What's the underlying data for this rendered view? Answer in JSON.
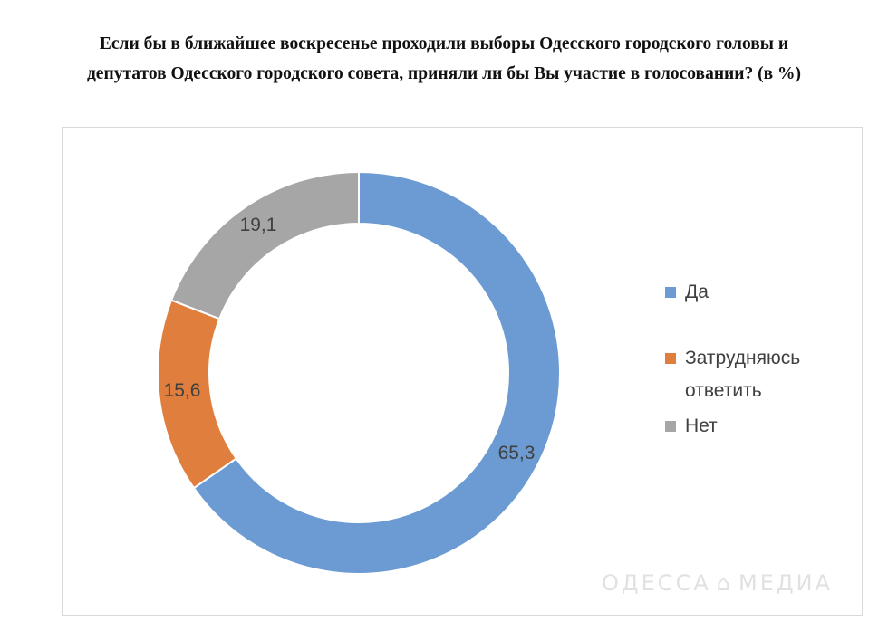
{
  "title": {
    "line1": "Если бы в ближайшее воскресенье проходили выборы Одесского городского головы и",
    "line2": "депутатов Одесского городского совета, приняли ли бы Вы участие в голосовании? (в %)"
  },
  "chart_data": {
    "type": "pie",
    "subtype": "donut",
    "title": "Если бы в ближайшее воскресенье проходили выборы Одесского городского головы и депутатов Одесского городского совета, приняли ли бы Вы участие в голосовании? (в %)",
    "categories": [
      "Да",
      "Затрудняюсь ответить",
      "Нет"
    ],
    "values": [
      65.3,
      15.6,
      19.1
    ],
    "value_labels": [
      "65,3",
      "15,6",
      "19,1"
    ],
    "colors": [
      "#6b9bd2",
      "#e07f3d",
      "#a6a6a6"
    ],
    "legend_position": "right"
  },
  "legend": {
    "items": [
      {
        "label": "Да",
        "color": "#6b9bd2"
      },
      {
        "label": "Затрудняюсь",
        "label2": "ответить",
        "color": "#e07f3d"
      },
      {
        "label": "Нет",
        "color": "#a6a6a6"
      }
    ]
  },
  "watermark": {
    "left": "ОДЕССА",
    "right": "МЕДИА"
  }
}
